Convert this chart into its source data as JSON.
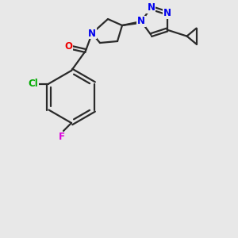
{
  "bg_color": "#e8e8e8",
  "bond_color": "#2a2a2a",
  "bond_width": 1.6,
  "atom_colors": {
    "N": "#0000ee",
    "O": "#ee0000",
    "Cl": "#00aa00",
    "F": "#dd00dd",
    "C": "#2a2a2a"
  },
  "font_size_atom": 8.5,
  "figsize": [
    3.0,
    3.0
  ],
  "dpi": 100
}
